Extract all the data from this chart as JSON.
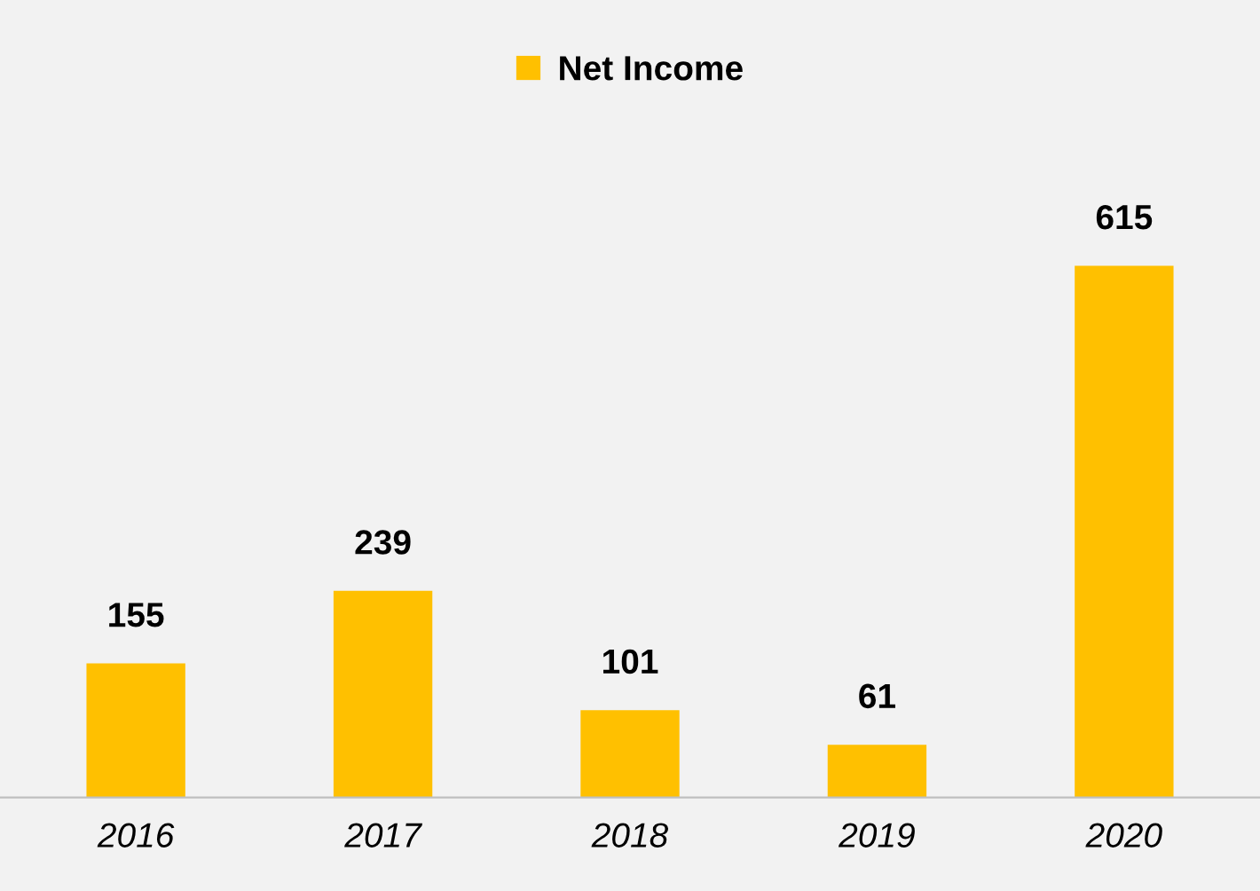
{
  "chart_data": {
    "type": "bar",
    "categories": [
      "2016",
      "2017",
      "2018",
      "2019",
      "2020"
    ],
    "series": [
      {
        "name": "Net Income",
        "color": "#ffc000",
        "values": [
          155,
          239,
          101,
          61,
          615
        ]
      }
    ],
    "data_labels": true,
    "legend": "top",
    "grid": false
  }
}
